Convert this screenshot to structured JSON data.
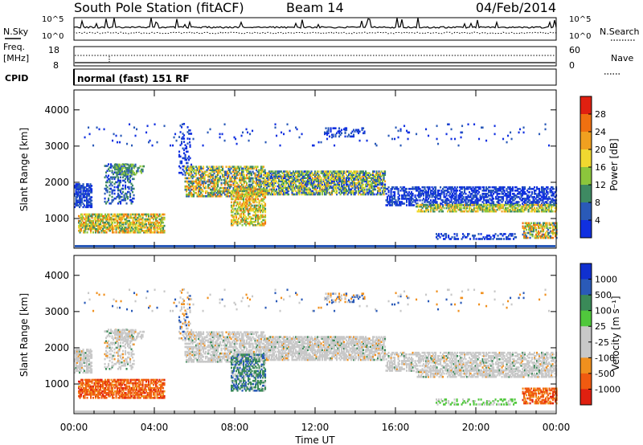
{
  "header": {
    "station": "South Pole Station (fitACF)",
    "beam": "Beam 14",
    "date": "04/Feb/2014"
  },
  "left_labels": {
    "nsky": "N.Sky",
    "freq_line1": "Freq.",
    "freq_line2": "[MHz]",
    "cpid": "CPID"
  },
  "right_labels": {
    "nsearch": "N.Search",
    "nave": "Nave"
  },
  "noise_panel": {
    "ticks_left": [
      "10^5",
      "10^0"
    ],
    "ticks_right": [
      "10^5",
      "10^0"
    ]
  },
  "freq_panel": {
    "ticks_left": [
      "18",
      "8"
    ],
    "ticks_right": [
      "60",
      "0"
    ]
  },
  "cpid_text": "normal (fast) 151 RF",
  "x_axis": {
    "title": "Time UT",
    "ticks": [
      "00:00",
      "04:00",
      "08:00",
      "12:00",
      "16:00",
      "20:00",
      "00:00"
    ]
  },
  "colors": {
    "power": [
      "#1030e0",
      "#2a5ab8",
      "#3e8a62",
      "#8cc63c",
      "#f0d830",
      "#f0a020",
      "#f07010",
      "#e02010"
    ],
    "velocity": [
      "#e02010",
      "#f05a10",
      "#f0901e",
      "#c8c8c8",
      "#c8c8c8",
      "#50c83c",
      "#3a8a58",
      "#2a5ab8",
      "#1030d0"
    ]
  },
  "chart_data": [
    {
      "type": "heatmap",
      "panel": "power",
      "ylabel": "Slant Range [km]",
      "xlabel": "Time UT",
      "y_ticks": [
        "1000",
        "2000",
        "3000",
        "4000"
      ],
      "ylim": [
        180,
        4550
      ],
      "colorbar_label": "Power [dB]",
      "colorbar_ticks": [
        "4",
        "8",
        "12",
        "16",
        "20",
        "24",
        "28"
      ],
      "vlim": [
        0,
        32
      ]
    },
    {
      "type": "heatmap",
      "panel": "velocity",
      "ylabel": "Slant Range [km]",
      "xlabel": "Time UT",
      "y_ticks": [
        "1000",
        "2000",
        "3000",
        "4000"
      ],
      "ylim": [
        180,
        4550
      ],
      "colorbar_label": "Velocity [m s⁻¹]",
      "colorbar_ticks": [
        "1000",
        "500",
        "100",
        "25",
        "-25",
        "-100",
        "-500",
        "-1000"
      ]
    }
  ]
}
